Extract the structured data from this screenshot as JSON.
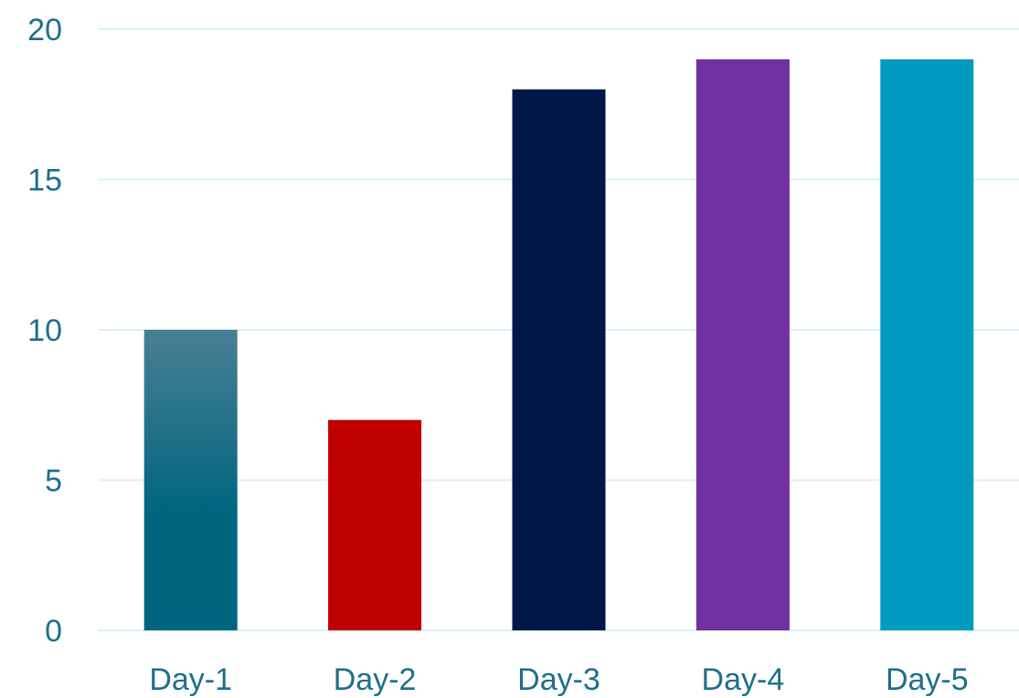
{
  "chart_data": {
    "type": "bar",
    "categories": [
      "Day-1",
      "Day-2",
      "Day-3",
      "Day-4",
      "Day-5"
    ],
    "values": [
      10,
      7,
      18,
      19,
      19
    ],
    "bar_colors": [
      "#006680",
      "#c00000",
      "#001848",
      "#7030a0",
      "#009ac0"
    ],
    "bar_gradient_top": [
      "#4a7f93",
      null,
      null,
      null,
      null
    ],
    "ylim": [
      0,
      20
    ],
    "yticks": [
      0,
      5,
      10,
      15,
      20
    ],
    "grid": true,
    "grid_color": "#d9f1f7",
    "label_color": "#1e6f8c",
    "title": "",
    "xlabel": "",
    "ylabel": ""
  }
}
